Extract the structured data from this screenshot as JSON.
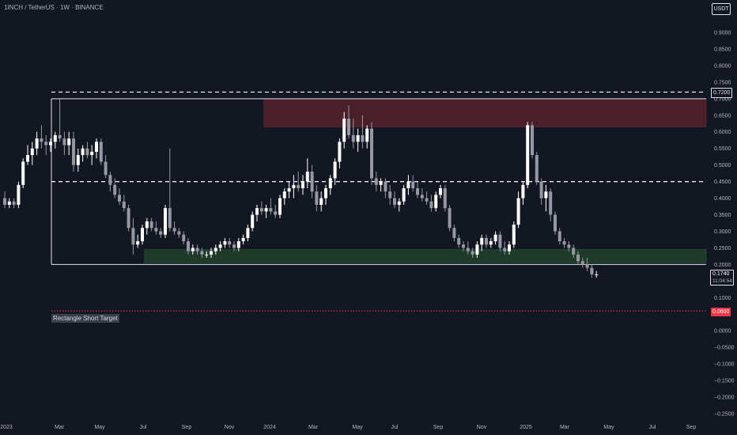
{
  "header": {
    "title": "1INCH / TetherUS · 1W · BINANCE",
    "currency_button": "USDT"
  },
  "price_labels": {
    "upper_line": "0.7200",
    "current_price": "0.1740",
    "countdown": "11:04:54",
    "target": "0.0600"
  },
  "annotations": {
    "target_text": "Rectangle Short Target"
  },
  "colors": {
    "background": "#131722",
    "candle_up": "#ffffff",
    "candle_down": "#9598a1",
    "supply_zone": "#4a1f29",
    "demand_zone": "#1e3a2a",
    "dashed_line": "#ffffff",
    "target_line": "#f23645"
  },
  "chart_data": {
    "type": "candlestick",
    "y_ticks": [
      "0.9000",
      "0.8500",
      "0.8000",
      "0.7500",
      "0.7000",
      "0.6500",
      "0.6000",
      "0.5500",
      "0.5000",
      "0.4500",
      "0.4000",
      "0.3500",
      "0.3000",
      "0.2500",
      "0.2000",
      "0.1500",
      "0.1000",
      "0.0500",
      "0.0000",
      "−0.0500",
      "−0.1000",
      "−0.1500",
      "−0.2000",
      "−0.2500"
    ],
    "x_ticks": [
      "2023",
      "Mar",
      "May",
      "Jul",
      "Sep",
      "Nov",
      "2024",
      "Mar",
      "May",
      "Jul",
      "Sep",
      "Nov",
      "2025",
      "Mar",
      "May",
      "Jul",
      "Sep"
    ],
    "ylim": [
      -0.25,
      0.93
    ],
    "levels": {
      "rectangle_top": 0.7,
      "rectangle_bottom": 0.2,
      "dashed_upper": 0.72,
      "dashed_mid": 0.45,
      "target": 0.06
    },
    "zones": [
      {
        "type": "supply",
        "x_start_week": 57,
        "x_end_week": 127,
        "low": 0.615,
        "high": 0.7
      },
      {
        "type": "demand",
        "x_start_week": 31,
        "x_end_week": 127,
        "low": 0.205,
        "high": 0.245
      }
    ],
    "candles": [
      [
        0.4,
        0.42,
        0.37,
        0.38
      ],
      [
        0.38,
        0.4,
        0.37,
        0.39
      ],
      [
        0.39,
        0.4,
        0.37,
        0.38
      ],
      [
        0.38,
        0.45,
        0.37,
        0.44
      ],
      [
        0.44,
        0.52,
        0.43,
        0.51
      ],
      [
        0.51,
        0.56,
        0.5,
        0.53
      ],
      [
        0.53,
        0.57,
        0.5,
        0.55
      ],
      [
        0.55,
        0.6,
        0.53,
        0.58
      ],
      [
        0.58,
        0.62,
        0.55,
        0.57
      ],
      [
        0.57,
        0.59,
        0.53,
        0.56
      ],
      [
        0.56,
        0.58,
        0.54,
        0.57
      ],
      [
        0.57,
        0.6,
        0.55,
        0.59
      ],
      [
        0.59,
        0.7,
        0.57,
        0.58
      ],
      [
        0.58,
        0.6,
        0.53,
        0.56
      ],
      [
        0.56,
        0.6,
        0.53,
        0.58
      ],
      [
        0.58,
        0.6,
        0.48,
        0.5
      ],
      [
        0.5,
        0.55,
        0.48,
        0.53
      ],
      [
        0.53,
        0.56,
        0.51,
        0.55
      ],
      [
        0.55,
        0.57,
        0.52,
        0.53
      ],
      [
        0.53,
        0.56,
        0.5,
        0.54
      ],
      [
        0.54,
        0.58,
        0.52,
        0.57
      ],
      [
        0.57,
        0.58,
        0.5,
        0.51
      ],
      [
        0.51,
        0.53,
        0.46,
        0.47
      ],
      [
        0.47,
        0.48,
        0.42,
        0.44
      ],
      [
        0.44,
        0.46,
        0.4,
        0.41
      ],
      [
        0.41,
        0.43,
        0.38,
        0.39
      ],
      [
        0.39,
        0.41,
        0.36,
        0.37
      ],
      [
        0.37,
        0.38,
        0.3,
        0.31
      ],
      [
        0.31,
        0.34,
        0.23,
        0.26
      ],
      [
        0.26,
        0.29,
        0.25,
        0.27
      ],
      [
        0.27,
        0.32,
        0.26,
        0.31
      ],
      [
        0.31,
        0.34,
        0.29,
        0.33
      ],
      [
        0.33,
        0.34,
        0.3,
        0.31
      ],
      [
        0.31,
        0.33,
        0.29,
        0.3
      ],
      [
        0.3,
        0.31,
        0.28,
        0.29
      ],
      [
        0.29,
        0.38,
        0.28,
        0.37
      ],
      [
        0.37,
        0.55,
        0.3,
        0.31
      ],
      [
        0.31,
        0.33,
        0.29,
        0.3
      ],
      [
        0.3,
        0.31,
        0.28,
        0.29
      ],
      [
        0.29,
        0.3,
        0.26,
        0.27
      ],
      [
        0.27,
        0.28,
        0.23,
        0.24
      ],
      [
        0.24,
        0.26,
        0.23,
        0.25
      ],
      [
        0.25,
        0.26,
        0.23,
        0.24
      ],
      [
        0.24,
        0.25,
        0.22,
        0.23
      ],
      [
        0.23,
        0.24,
        0.22,
        0.23
      ],
      [
        0.23,
        0.25,
        0.22,
        0.24
      ],
      [
        0.24,
        0.26,
        0.23,
        0.25
      ],
      [
        0.25,
        0.27,
        0.24,
        0.26
      ],
      [
        0.26,
        0.28,
        0.25,
        0.27
      ],
      [
        0.27,
        0.28,
        0.25,
        0.26
      ],
      [
        0.26,
        0.27,
        0.24,
        0.25
      ],
      [
        0.25,
        0.28,
        0.24,
        0.27
      ],
      [
        0.27,
        0.29,
        0.26,
        0.28
      ],
      [
        0.28,
        0.32,
        0.27,
        0.31
      ],
      [
        0.31,
        0.36,
        0.3,
        0.35
      ],
      [
        0.35,
        0.38,
        0.33,
        0.37
      ],
      [
        0.37,
        0.39,
        0.35,
        0.36
      ],
      [
        0.36,
        0.38,
        0.34,
        0.37
      ],
      [
        0.37,
        0.4,
        0.35,
        0.36
      ],
      [
        0.36,
        0.38,
        0.34,
        0.35
      ],
      [
        0.35,
        0.41,
        0.34,
        0.4
      ],
      [
        0.4,
        0.43,
        0.38,
        0.42
      ],
      [
        0.42,
        0.45,
        0.4,
        0.43
      ],
      [
        0.43,
        0.47,
        0.4,
        0.44
      ],
      [
        0.44,
        0.48,
        0.42,
        0.43
      ],
      [
        0.43,
        0.47,
        0.41,
        0.45
      ],
      [
        0.45,
        0.52,
        0.43,
        0.48
      ],
      [
        0.48,
        0.5,
        0.4,
        0.42
      ],
      [
        0.42,
        0.44,
        0.36,
        0.38
      ],
      [
        0.38,
        0.42,
        0.36,
        0.4
      ],
      [
        0.4,
        0.44,
        0.38,
        0.43
      ],
      [
        0.43,
        0.47,
        0.41,
        0.46
      ],
      [
        0.46,
        0.52,
        0.44,
        0.51
      ],
      [
        0.51,
        0.58,
        0.49,
        0.57
      ],
      [
        0.57,
        0.66,
        0.55,
        0.64
      ],
      [
        0.64,
        0.68,
        0.58,
        0.59
      ],
      [
        0.59,
        0.64,
        0.55,
        0.57
      ],
      [
        0.57,
        0.61,
        0.54,
        0.59
      ],
      [
        0.59,
        0.65,
        0.55,
        0.57
      ],
      [
        0.57,
        0.62,
        0.55,
        0.61
      ],
      [
        0.61,
        0.63,
        0.44,
        0.46
      ],
      [
        0.46,
        0.48,
        0.42,
        0.44
      ],
      [
        0.44,
        0.46,
        0.42,
        0.45
      ],
      [
        0.45,
        0.46,
        0.4,
        0.42
      ],
      [
        0.42,
        0.44,
        0.38,
        0.4
      ],
      [
        0.4,
        0.42,
        0.37,
        0.38
      ],
      [
        0.38,
        0.4,
        0.36,
        0.39
      ],
      [
        0.39,
        0.44,
        0.38,
        0.43
      ],
      [
        0.43,
        0.47,
        0.41,
        0.45
      ],
      [
        0.45,
        0.47,
        0.42,
        0.43
      ],
      [
        0.43,
        0.45,
        0.4,
        0.41
      ],
      [
        0.41,
        0.43,
        0.39,
        0.4
      ],
      [
        0.4,
        0.42,
        0.38,
        0.39
      ],
      [
        0.39,
        0.41,
        0.36,
        0.37
      ],
      [
        0.37,
        0.42,
        0.36,
        0.41
      ],
      [
        0.41,
        0.44,
        0.4,
        0.43
      ],
      [
        0.43,
        0.44,
        0.36,
        0.37
      ],
      [
        0.37,
        0.38,
        0.3,
        0.31
      ],
      [
        0.31,
        0.32,
        0.27,
        0.28
      ],
      [
        0.28,
        0.29,
        0.25,
        0.26
      ],
      [
        0.26,
        0.27,
        0.24,
        0.25
      ],
      [
        0.25,
        0.27,
        0.23,
        0.24
      ],
      [
        0.24,
        0.25,
        0.22,
        0.23
      ],
      [
        0.23,
        0.27,
        0.22,
        0.26
      ],
      [
        0.26,
        0.29,
        0.24,
        0.28
      ],
      [
        0.28,
        0.29,
        0.25,
        0.26
      ],
      [
        0.26,
        0.28,
        0.25,
        0.27
      ],
      [
        0.27,
        0.3,
        0.26,
        0.29
      ],
      [
        0.29,
        0.3,
        0.24,
        0.25
      ],
      [
        0.25,
        0.27,
        0.23,
        0.24
      ],
      [
        0.24,
        0.27,
        0.23,
        0.26
      ],
      [
        0.26,
        0.33,
        0.25,
        0.32
      ],
      [
        0.32,
        0.42,
        0.31,
        0.4
      ],
      [
        0.4,
        0.45,
        0.38,
        0.44
      ],
      [
        0.44,
        0.63,
        0.43,
        0.62
      ],
      [
        0.62,
        0.63,
        0.52,
        0.53
      ],
      [
        0.53,
        0.54,
        0.44,
        0.45
      ],
      [
        0.45,
        0.46,
        0.38,
        0.4
      ],
      [
        0.4,
        0.44,
        0.36,
        0.42
      ],
      [
        0.42,
        0.43,
        0.33,
        0.35
      ],
      [
        0.35,
        0.36,
        0.29,
        0.3
      ],
      [
        0.3,
        0.31,
        0.26,
        0.27
      ],
      [
        0.27,
        0.28,
        0.25,
        0.26
      ],
      [
        0.26,
        0.27,
        0.24,
        0.25
      ],
      [
        0.25,
        0.26,
        0.22,
        0.23
      ],
      [
        0.23,
        0.24,
        0.2,
        0.21
      ],
      [
        0.21,
        0.22,
        0.19,
        0.2
      ],
      [
        0.2,
        0.22,
        0.18,
        0.19
      ],
      [
        0.19,
        0.2,
        0.16,
        0.17
      ],
      [
        0.17,
        0.18,
        0.16,
        0.17
      ]
    ]
  }
}
